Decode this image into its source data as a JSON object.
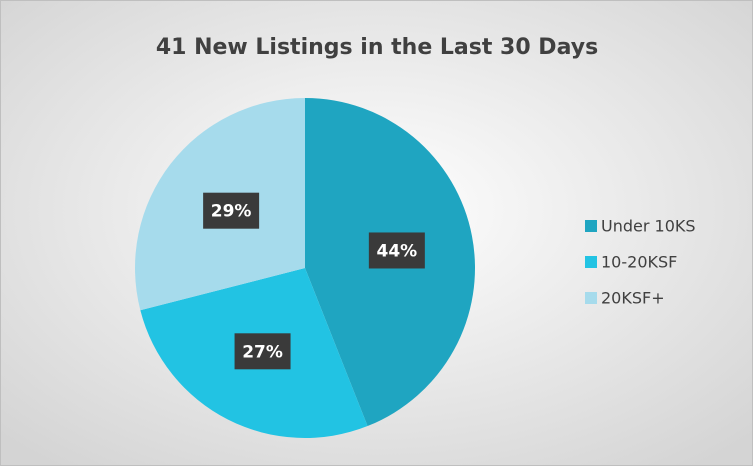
{
  "chart_data": {
    "type": "pie",
    "title": "41 New Listings in the Last 30 Days",
    "categories": [
      "Under 10KS",
      "10-20KSF",
      "20KSF+"
    ],
    "values": [
      44,
      27,
      29
    ],
    "value_labels": [
      "44%",
      "27%",
      "29%"
    ],
    "colors": [
      "#1fa5c1",
      "#22c3e3",
      "#a6dbec"
    ],
    "legend": "right"
  }
}
